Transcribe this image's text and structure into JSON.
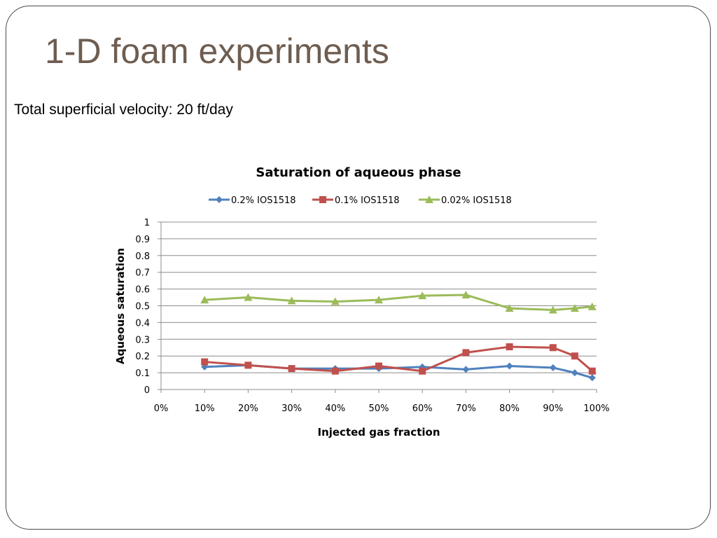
{
  "slide": {
    "title": "1-D foam experiments",
    "subtitle": "Total superficial velocity: 20 ft/day"
  },
  "chart_data": {
    "type": "line",
    "title": "Saturation of aqueous phase",
    "xlabel": "Injected gas fraction",
    "ylabel": "Aqueous saturation",
    "xlim": [
      0,
      100
    ],
    "ylim": [
      0,
      1
    ],
    "x_ticks": [
      0,
      10,
      20,
      30,
      40,
      50,
      60,
      70,
      80,
      90,
      100
    ],
    "x_tick_labels": [
      "0%",
      "10%",
      "20%",
      "30%",
      "40%",
      "50%",
      "60%",
      "70%",
      "80%",
      "90%",
      "100%"
    ],
    "y_ticks": [
      0,
      0.1,
      0.2,
      0.3,
      0.4,
      0.5,
      0.6,
      0.7,
      0.8,
      0.9,
      1
    ],
    "y_tick_labels": [
      "0",
      "0.1",
      "0.2",
      "0.3",
      "0.4",
      "0.5",
      "0.6",
      "0.7",
      "0.8",
      "0.9",
      "1"
    ],
    "grid": "horizontal",
    "legend_position": "top",
    "series": [
      {
        "name": "0.2% IOS1518",
        "color": "#4f81bd",
        "marker": "diamond",
        "x": [
          10,
          20,
          30,
          40,
          50,
          60,
          70,
          80,
          90,
          95,
          99
        ],
        "y": [
          0.135,
          0.145,
          0.125,
          0.125,
          0.125,
          0.135,
          0.12,
          0.14,
          0.13,
          0.1,
          0.07
        ]
      },
      {
        "name": "0.1% IOS1518",
        "color": "#c0504d",
        "marker": "square",
        "x": [
          10,
          20,
          30,
          40,
          50,
          60,
          70,
          80,
          90,
          95,
          99
        ],
        "y": [
          0.165,
          0.145,
          0.125,
          0.11,
          0.14,
          0.11,
          0.22,
          0.255,
          0.25,
          0.2,
          0.11
        ]
      },
      {
        "name": "0.02% IOS1518",
        "color": "#9bbb59",
        "marker": "triangle",
        "x": [
          10,
          20,
          30,
          40,
          50,
          60,
          70,
          80,
          90,
          95,
          99
        ],
        "y": [
          0.535,
          0.55,
          0.53,
          0.525,
          0.535,
          0.56,
          0.565,
          0.485,
          0.475,
          0.485,
          0.495
        ]
      }
    ]
  }
}
